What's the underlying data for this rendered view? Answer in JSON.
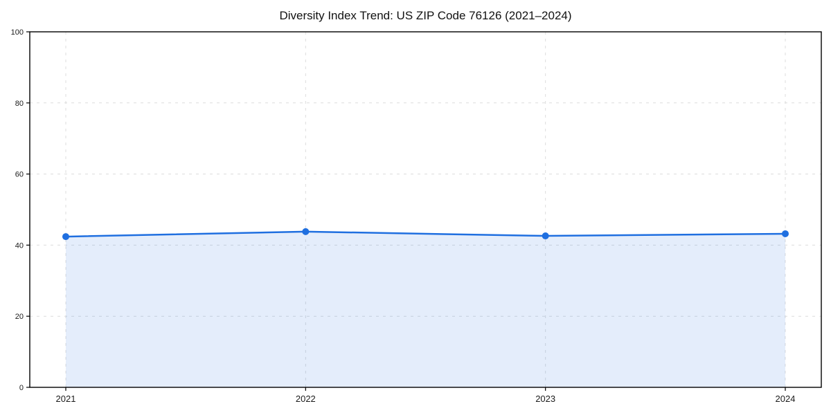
{
  "figure": {
    "background": "#ffffff"
  },
  "chart_data": {
    "type": "line",
    "title": "Diversity Index Trend: US ZIP Code 76126 (2021–2024)",
    "categories": [
      "2021",
      "2022",
      "2023",
      "2024"
    ],
    "series": [
      {
        "name": "Diversity Index",
        "values": [
          42.4,
          43.8,
          42.6,
          43.2
        ],
        "color": "#1f6fe0"
      }
    ],
    "xlabel": "",
    "ylabel": "",
    "ylim": [
      0,
      100
    ],
    "yticks": [
      0,
      20,
      40,
      60,
      80,
      100
    ],
    "grid": true,
    "grid_line_style": "dashed",
    "grid_color": "#dcdcdc",
    "legend_position": "none",
    "area_fill": true,
    "fill_opacity": 0.12,
    "marker": "circle",
    "axis_color": "#000000",
    "tick_label_color": "#1a1a1a"
  }
}
